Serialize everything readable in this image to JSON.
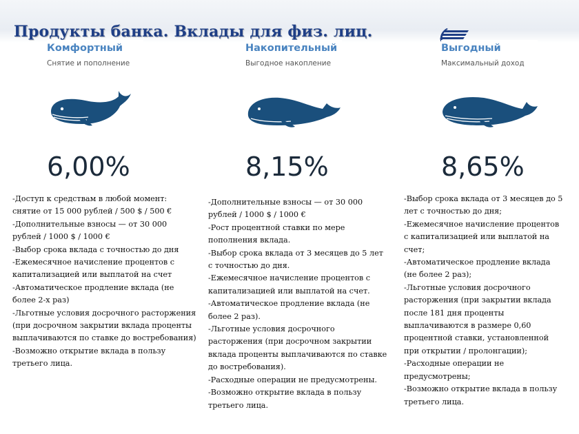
{
  "header": {
    "title": "Продукты банка. Вклады для физ. лиц."
  },
  "colors": {
    "title": "#1f3f86",
    "card_name": "#4a84c0",
    "whale": "#1a4f7c",
    "rate": "#1b2a3a"
  },
  "cards": [
    {
      "name": "Комфортный",
      "subtitle": "Снятие и пополнение",
      "rate": "6,00%",
      "icon": "whale-icon",
      "features": [
        "-Доступ к средствам в любой момент: снятие от 15 000 рублей / 500 $ / 500 €",
        "-Дополнительные взносы — от 30 000 рублей / 1000 $ / 1000 €",
        "-Выбор срока вклада с точностью до дня",
        "-Ежемесячное начисление процентов с капитализацией или выплатой на счет",
        "-Автоматическое продление вклада (не более 2-х раз)",
        "-Льготные условия досрочного расторжения (при досрочном закрытии вклада проценты выплачиваются по ставке до востребования)",
        "-Возможно открытие вклада в пользу третьего лица."
      ]
    },
    {
      "name": "Накопительный",
      "subtitle": "Выгодное накопление",
      "rate": "8,15%",
      "icon": "whale-icon",
      "features": [
        "-Дополнительные взносы — от 30 000 рублей / 1000 $ / 1000 €",
        "-Рост процентной ставки по мере пополнения вклада.",
        "-Выбор срока вклада от 3 месяцев до 5 лет с точностью до дня.",
        "-Ежемесячное начисление процентов с капитализацией или выплатой на счет.",
        "-Автоматическое продление вклада (не более 2 раз).",
        "-Льготные условия досрочного расторжения (при досрочном закрытии вклада проценты выплачиваются по ставке до востребования).",
        "-Расходные операции не предусмотрены.",
        "-Возможно открытие вклада в пользу третьего лица."
      ]
    },
    {
      "name": "Выгодный",
      "subtitle": "Максимальный доход",
      "rate": "8,65%",
      "icon": "whale-icon",
      "features": [
        "-Выбор срока вклада от 3 месяцев до 5 лет с точностью до дня;",
        "-Ежемесячное начисление процентов с капитализацией или выплатой на счет;",
        "-Автоматическое продление вклада (не более 2 раз);",
        "-Льготные условия досрочного расторжения (при закрытии вклада после 181 дня проценты выплачиваются в размере 0,60 процентной ставки, установленной при открытии / пролонгации);",
        "-Расходные операции не предусмотрены;",
        "-Возможно открытие вклада в пользу третьего лица."
      ]
    }
  ]
}
